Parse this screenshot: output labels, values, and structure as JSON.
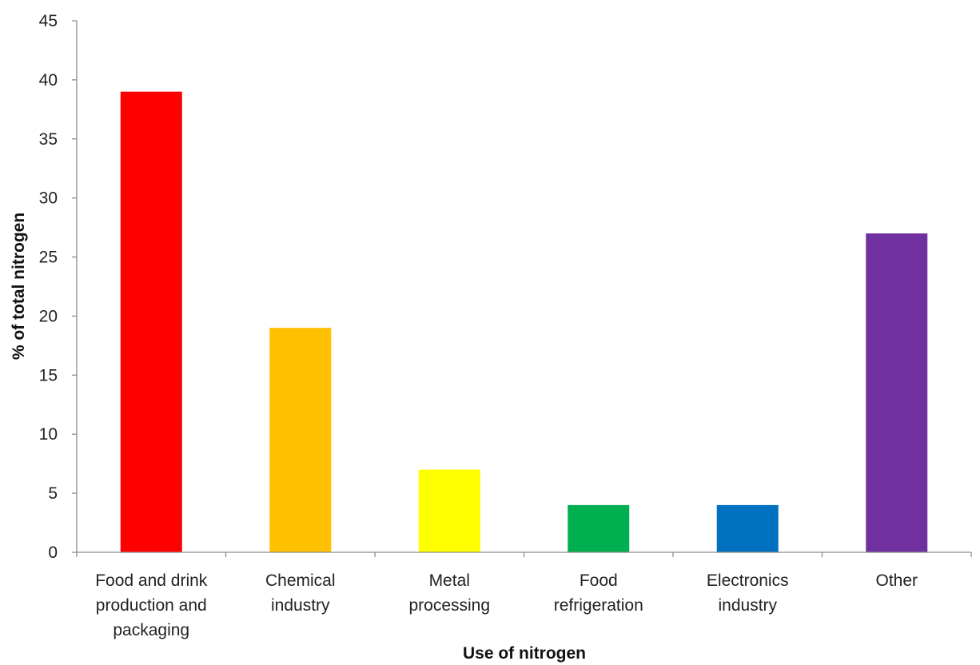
{
  "chart_data": {
    "type": "bar",
    "title": "",
    "xlabel": "Use of nitrogen",
    "ylabel": "% of total nitrogen",
    "ylim": [
      0,
      45
    ],
    "yticks": [
      0,
      5,
      10,
      15,
      20,
      25,
      30,
      35,
      40,
      45
    ],
    "grid": false,
    "legend": "none",
    "categories": [
      "Food and drink production and packaging",
      "Chemical industry",
      "Metal processing",
      "Food refrigeration",
      "Electronics industry",
      "Other"
    ],
    "category_lines": [
      [
        "Food and drink",
        "production and",
        "packaging"
      ],
      [
        "Chemical",
        "industry"
      ],
      [
        "Metal",
        "processing"
      ],
      [
        "Food",
        "refrigeration"
      ],
      [
        "Electronics",
        "industry"
      ],
      [
        "Other"
      ]
    ],
    "values": [
      39,
      19,
      7,
      4,
      4,
      27
    ],
    "colors": [
      "#ff0000",
      "#ffc000",
      "#ffff00",
      "#00b050",
      "#0070c0",
      "#7030a0"
    ]
  }
}
